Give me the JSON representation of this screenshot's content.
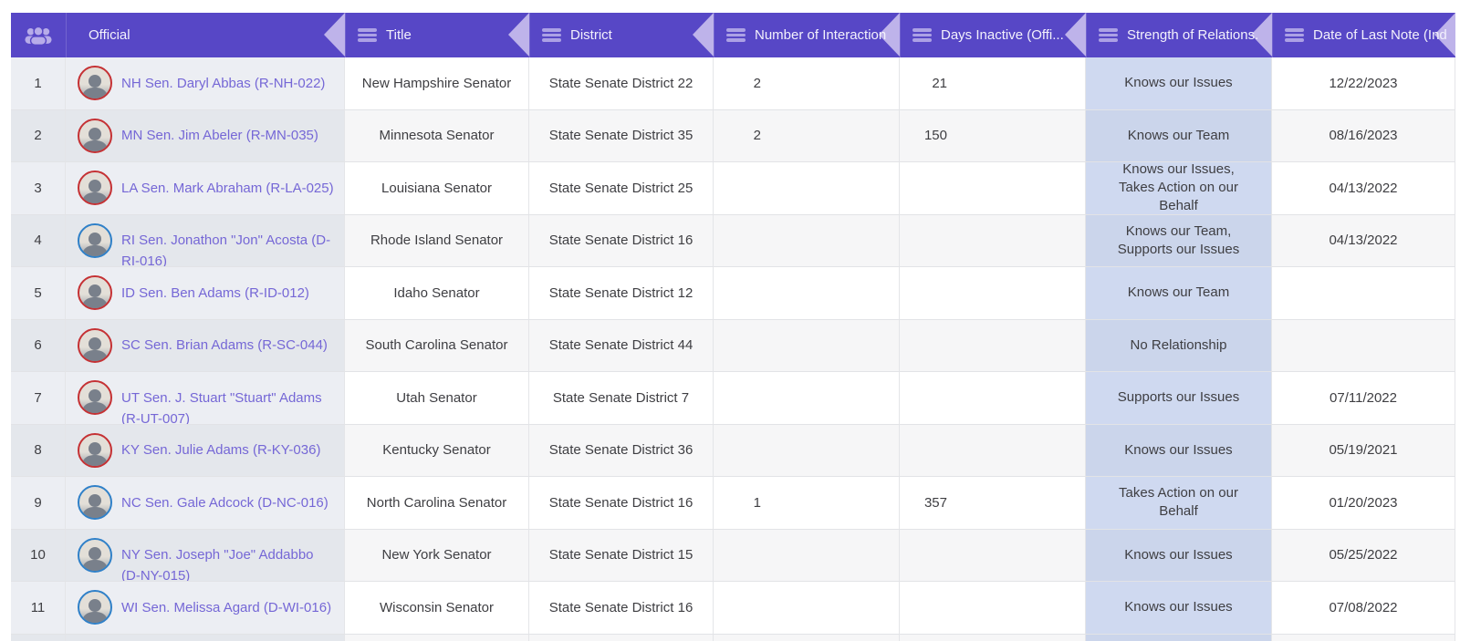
{
  "header": {
    "row_selector_icon": "users-icon",
    "columns": [
      {
        "label": "Official"
      },
      {
        "label": "Title"
      },
      {
        "label": "District"
      },
      {
        "label": "Number of Interaction"
      },
      {
        "label": "Days Inactive (Offi..."
      },
      {
        "label": "Strength of Relations."
      },
      {
        "label": "Date of Last Note (Ind"
      }
    ]
  },
  "colors": {
    "header_bg": "#5747C6",
    "header_text": "#F3F1FC",
    "sort_arrow": "#BEB3EA",
    "bar_fill": "#5634C9",
    "link_text": "#7567D6",
    "strength_column_bg": "#CDD7EE",
    "republican_ring": "#C53134",
    "democrat_ring": "#2F80C8"
  },
  "bar_scale_note": "bar widths are min-max scaled per column, stored as percent of track",
  "rows": [
    {
      "num": "1",
      "official": "NH Sen. Daryl Abbas (R-NH-022)",
      "party": "R",
      "title": "New Hampshire Senator",
      "district": "State Senate District 22",
      "interactions": "2",
      "interactions_bar_pct": 100,
      "days_inactive": "21",
      "days_bar_pct": 1.5,
      "strength": "Knows our Issues",
      "last_note": "12/22/2023"
    },
    {
      "num": "2",
      "official": "MN Sen. Jim Abeler (R-MN-035)",
      "party": "R",
      "title": "Minnesota Senator",
      "district": "State Senate District 35",
      "interactions": "2",
      "interactions_bar_pct": 100,
      "days_inactive": "150",
      "days_bar_pct": 38,
      "strength": "Knows our Team",
      "last_note": "08/16/2023"
    },
    {
      "num": "3",
      "official": "LA Sen. Mark Abraham (R-LA-025)",
      "party": "R",
      "title": "Louisiana Senator",
      "district": "State Senate District 25",
      "interactions": "",
      "interactions_bar_pct": null,
      "days_inactive": "",
      "days_bar_pct": null,
      "strength": "Knows our Issues, Takes Action on our Behalf",
      "last_note": "04/13/2022"
    },
    {
      "num": "4",
      "official": "RI Sen. Jonathon \"Jon\" Acosta (D-RI-016)",
      "party": "D",
      "title": "Rhode Island Senator",
      "district": "State Senate District 16",
      "interactions": "",
      "interactions_bar_pct": null,
      "days_inactive": "",
      "days_bar_pct": null,
      "strength": "Knows our Team, Supports our Issues",
      "last_note": "04/13/2022"
    },
    {
      "num": "5",
      "official": "ID Sen. Ben Adams (R-ID-012)",
      "party": "R",
      "title": "Idaho Senator",
      "district": "State Senate District 12",
      "interactions": "",
      "interactions_bar_pct": null,
      "days_inactive": "",
      "days_bar_pct": null,
      "strength": "Knows our Team",
      "last_note": ""
    },
    {
      "num": "6",
      "official": "SC Sen. Brian Adams (R-SC-044)",
      "party": "R",
      "title": "South Carolina Senator",
      "district": "State Senate District 44",
      "interactions": "",
      "interactions_bar_pct": null,
      "days_inactive": "",
      "days_bar_pct": null,
      "strength": "No Relationship",
      "last_note": ""
    },
    {
      "num": "7",
      "official": "UT Sen. J. Stuart \"Stuart\" Adams (R-UT-007)",
      "party": "R",
      "title": "Utah Senator",
      "district": "State Senate District 7",
      "interactions": "",
      "interactions_bar_pct": null,
      "days_inactive": "",
      "days_bar_pct": null,
      "strength": "Supports our Issues",
      "last_note": "07/11/2022"
    },
    {
      "num": "8",
      "official": "KY Sen. Julie Adams (R-KY-036)",
      "party": "R",
      "title": "Kentucky Senator",
      "district": "State Senate District 36",
      "interactions": "",
      "interactions_bar_pct": null,
      "days_inactive": "",
      "days_bar_pct": null,
      "strength": "Knows our Issues",
      "last_note": "05/19/2021"
    },
    {
      "num": "9",
      "official": "NC Sen. Gale Adcock (D-NC-016)",
      "party": "D",
      "title": "North Carolina Senator",
      "district": "State Senate District 16",
      "interactions": "1",
      "interactions_bar_pct": 2,
      "days_inactive": "357",
      "days_bar_pct": 100,
      "strength": "Takes Action on our Behalf",
      "last_note": "01/20/2023"
    },
    {
      "num": "10",
      "official": "NY Sen. Joseph \"Joe\" Addabbo (D-NY-015)",
      "party": "D",
      "title": "New York Senator",
      "district": "State Senate District 15",
      "interactions": "",
      "interactions_bar_pct": null,
      "days_inactive": "",
      "days_bar_pct": null,
      "strength": "Knows our Issues",
      "last_note": "05/25/2022"
    },
    {
      "num": "11",
      "official": "WI Sen. Melissa Agard (D-WI-016)",
      "party": "D",
      "title": "Wisconsin Senator",
      "district": "State Senate District 16",
      "interactions": "",
      "interactions_bar_pct": null,
      "days_inactive": "",
      "days_bar_pct": null,
      "strength": "Knows our Issues",
      "last_note": "07/08/2022"
    }
  ]
}
